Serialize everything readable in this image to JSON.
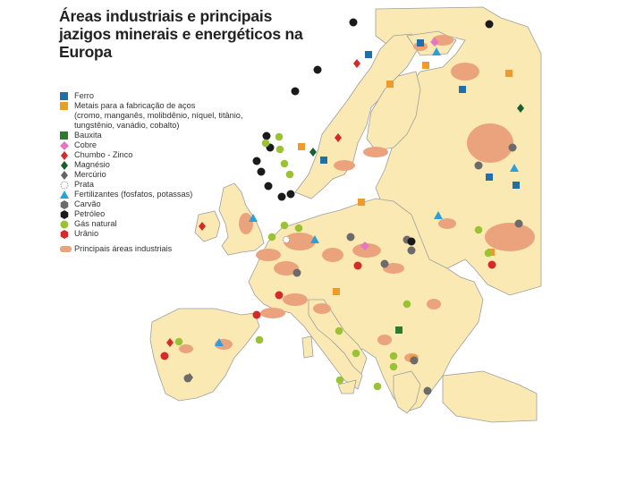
{
  "title": {
    "line1": "Áreas industriais e principais",
    "line2": "jazigos minerais e energéticos na",
    "line3": "Europa"
  },
  "legend": {
    "items": [
      {
        "label": "Ferro",
        "label2": "",
        "shape": "square",
        "color": "#1f6fa8"
      },
      {
        "label": "Metais para a fabricação de aços",
        "label2": "(cromo, manganês, molibdênio, níquel, titânio, tungstênio, vanádio, cobalto)",
        "shape": "square",
        "color": "#ee9a2c"
      },
      {
        "label": "Bauxita",
        "label2": "",
        "shape": "square",
        "color": "#2e7a2e"
      },
      {
        "label": "Cobre",
        "label2": "",
        "shape": "diamond",
        "color": "#e478c0"
      },
      {
        "label": "Chumbo - Zinco",
        "label2": "",
        "shape": "diamond",
        "color": "#d42a2a"
      },
      {
        "label": "Magnésio",
        "label2": "",
        "shape": "diamond",
        "color": "#1c5e2c"
      },
      {
        "label": "Mercúrio",
        "label2": "",
        "shape": "diamond",
        "color": "#666666"
      },
      {
        "label": "Prata",
        "label2": "",
        "shape": "circle-outline",
        "color": "#999999"
      },
      {
        "label": "Fertilizantes (fosfatos, potassas)",
        "label2": "",
        "shape": "triangle",
        "color": "#2aa0d8"
      },
      {
        "label": "Carvão",
        "label2": "",
        "shape": "hexagon",
        "color": "#6b6b6b"
      },
      {
        "label": "Petróleo",
        "label2": "",
        "shape": "hexagon",
        "color": "#1a1a1a"
      },
      {
        "label": "Gás natural",
        "label2": "",
        "shape": "circle",
        "color": "#9ac232"
      },
      {
        "label": "Urânio",
        "label2": "",
        "shape": "hexagon",
        "color": "#d42a2a"
      }
    ],
    "industrial": {
      "label": "Principais áreas industriais",
      "color": "#eba37e"
    }
  },
  "colors": {
    "land": "#fbe9b4",
    "sea": "#ffffff",
    "border": "#9e9e9e",
    "industrial": "#eba37e",
    "land_russia": "#fbe9b4"
  },
  "map_symbols": {
    "ferro": "square-blue",
    "metais": "square-orange",
    "bauxita": "square-green",
    "cobre": "diamond-pink",
    "chumbo_zinco": "diamond-red",
    "magnesio": "diamond-darkgreen",
    "mercurio": "diamond-grey",
    "prata": "circle-outline",
    "fertilizantes": "triangle-blue",
    "carvao": "hexagon-grey",
    "petroleo": "hexagon-black",
    "gas_natural": "circle-green",
    "uranio": "hexagon-red"
  }
}
